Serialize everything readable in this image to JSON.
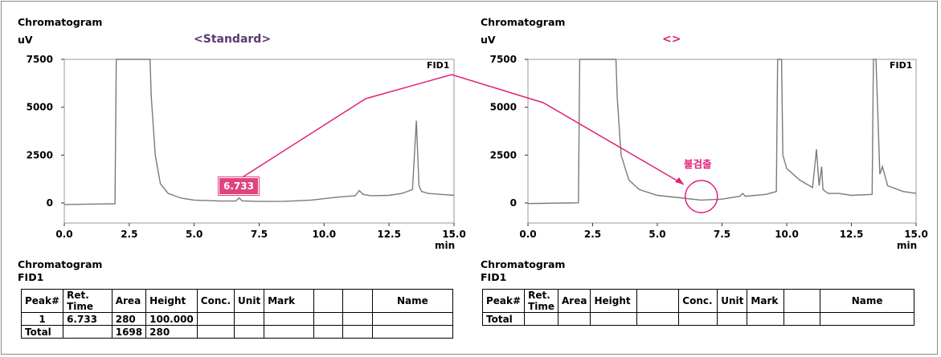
{
  "left_panel": {
    "heading": "Chromatogram",
    "unit": "uV",
    "title": "<Standard>",
    "detector": "FID1",
    "peak_callout": "6.733",
    "table_heading_line1": "Chromatogram",
    "table_heading_line2": "FID1",
    "table": {
      "headers": [
        "Peak#",
        "Ret. Time",
        "Area",
        "Height",
        "Conc.",
        "Unit",
        "Mark",
        "",
        "",
        "Name"
      ],
      "rows": [
        [
          "1",
          "6.733",
          "280",
          "100.000",
          "",
          "",
          "",
          "",
          "",
          ""
        ],
        [
          "Total",
          "",
          "1698",
          "280",
          "",
          "",
          "",
          "",
          "",
          ""
        ]
      ]
    }
  },
  "right_panel": {
    "heading": "Chromatogram",
    "unit": "uV",
    "title": "<>",
    "detector": "FID1",
    "annotation": "불검출",
    "table_heading_line1": "Chromatogram",
    "table_heading_line2": "FID1",
    "table": {
      "headers": [
        "Peak#",
        "Ret. Time",
        "Area",
        "Height",
        "",
        "Conc.",
        "Unit",
        "Mark",
        "",
        "Name"
      ],
      "rows": [
        [
          "Total",
          "",
          "",
          "",
          "",
          "",
          "",
          "",
          "",
          ""
        ]
      ]
    }
  },
  "axis": {
    "x_unit": "min"
  },
  "colors": {
    "trace": "#7a7a7a",
    "annotation": "#e0207a",
    "callout_bg": "#e0447f",
    "title_purple": "#5a3a6e"
  },
  "chart_data": [
    {
      "type": "line",
      "title": "<Standard>",
      "ylabel": "uV",
      "xlabel": "min",
      "xlim": [
        0,
        15
      ],
      "ylim": [
        0,
        7500
      ],
      "x_ticks": [
        0.0,
        2.5,
        5.0,
        7.5,
        10.0,
        12.5,
        15.0
      ],
      "x_tick_labels": [
        "0.0",
        "2.5",
        "5.0",
        "7.5",
        "10.0",
        "12.5",
        "15.0"
      ],
      "y_ticks": [
        0,
        2500,
        5000,
        7500
      ],
      "y_tick_labels": [
        "0",
        "2500",
        "5000",
        "7500"
      ],
      "legend": "FID1",
      "series": [
        {
          "name": "FID1",
          "x": [
            0.0,
            0.5,
            1.0,
            1.5,
            1.95,
            2.0,
            2.05,
            3.3,
            3.35,
            3.5,
            3.7,
            4.0,
            4.5,
            5.0,
            6.0,
            6.6,
            6.73,
            6.85,
            7.5,
            8.5,
            9.5,
            10.5,
            11.2,
            11.35,
            11.5,
            11.8,
            12.5,
            13.0,
            13.4,
            13.55,
            13.65,
            13.75,
            14.0,
            14.5,
            15.0
          ],
          "y": [
            -80,
            -70,
            -60,
            -50,
            -40,
            7500,
            7500,
            7500,
            5500,
            2500,
            1000,
            500,
            250,
            150,
            100,
            100,
            260,
            110,
            80,
            90,
            150,
            300,
            380,
            650,
            450,
            380,
            400,
            500,
            700,
            4300,
            900,
            600,
            500,
            450,
            400
          ]
        }
      ],
      "annotations": [
        {
          "label": "6.733",
          "x": 6.733
        }
      ]
    },
    {
      "type": "line",
      "title": "<>",
      "ylabel": "uV",
      "xlabel": "min",
      "xlim": [
        0,
        15
      ],
      "ylim": [
        0,
        7500
      ],
      "x_ticks": [
        0.0,
        2.5,
        5.0,
        7.5,
        10.0,
        12.5,
        15.0
      ],
      "x_tick_labels": [
        "0.0",
        "2.5",
        "5.0",
        "7.5",
        "10.0",
        "12.5",
        "15.0"
      ],
      "y_ticks": [
        0,
        2500,
        5000,
        7500
      ],
      "y_tick_labels": [
        "0",
        "2500",
        "5000",
        "7500"
      ],
      "legend": "FID1",
      "series": [
        {
          "name": "FID1",
          "x": [
            0.0,
            0.5,
            1.0,
            1.5,
            1.95,
            2.0,
            2.05,
            3.4,
            3.45,
            3.6,
            3.9,
            4.3,
            5.0,
            6.0,
            6.7,
            7.5,
            8.2,
            8.3,
            8.4,
            9.2,
            9.6,
            9.65,
            9.8,
            9.85,
            10.0,
            10.5,
            11.0,
            11.15,
            11.25,
            11.35,
            11.4,
            11.6,
            12.0,
            12.5,
            13.3,
            13.35,
            13.45,
            13.6,
            13.7,
            13.9,
            14.5,
            15.0
          ],
          "y": [
            -30,
            -20,
            -10,
            0,
            10,
            7500,
            7500,
            7500,
            5500,
            2500,
            1200,
            700,
            400,
            250,
            150,
            200,
            350,
            500,
            350,
            450,
            600,
            7500,
            7500,
            2500,
            1800,
            1200,
            800,
            2800,
            900,
            1900,
            700,
            500,
            500,
            400,
            450,
            7500,
            7500,
            1500,
            1900,
            900,
            600,
            500
          ]
        }
      ],
      "annotations": [
        {
          "label": "불검출",
          "x": 6.7
        }
      ]
    }
  ]
}
